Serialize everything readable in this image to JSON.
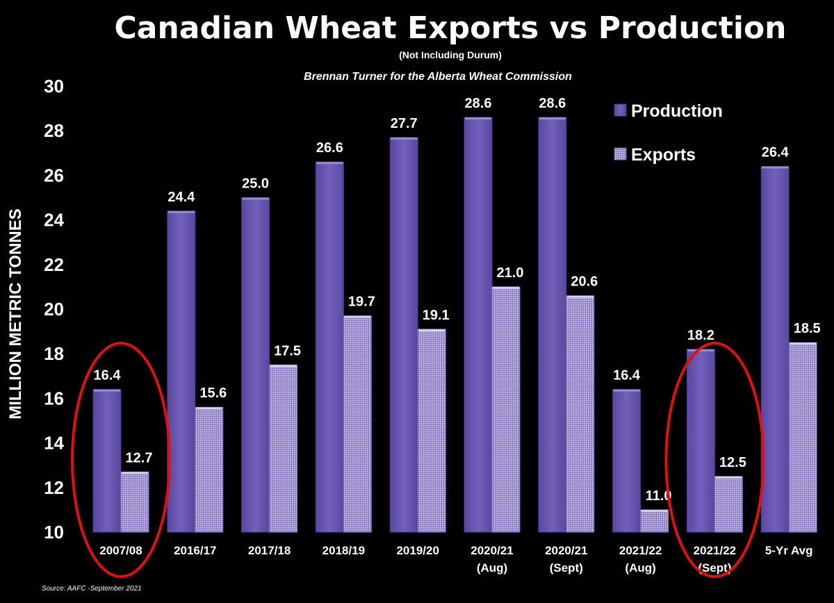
{
  "chart_data": {
    "type": "bar",
    "title": "Canadian Wheat Exports vs Production",
    "subtitle": "(Not Including Durum)",
    "author": "Brennan Turner for the Alberta Wheat Commission",
    "source": "Source: AAFC -September 2021",
    "ylabel": "MILLION METRIC TONNES",
    "ylim": [
      10,
      30
    ],
    "yticks": [
      10,
      12,
      14,
      16,
      18,
      20,
      22,
      24,
      26,
      28,
      30
    ],
    "grid": false,
    "legend_position": "top-right",
    "categories": [
      [
        "2007/08"
      ],
      [
        "2016/17"
      ],
      [
        "2017/18"
      ],
      [
        "2018/19"
      ],
      [
        "2019/20"
      ],
      [
        "2020/21",
        "(Aug)"
      ],
      [
        "2020/21",
        "(Sept)"
      ],
      [
        "2021/22",
        "(Aug)"
      ],
      [
        "2021/22",
        "(Sept)"
      ],
      [
        "5-Yr Avg"
      ]
    ],
    "series": [
      {
        "name": "Production",
        "color": "#6a56ad",
        "pattern": "solid",
        "values": [
          16.4,
          24.4,
          25.0,
          26.6,
          27.7,
          28.6,
          28.6,
          16.4,
          18.2,
          26.4
        ],
        "labels": [
          "16.4",
          "24.4",
          "25.0",
          "26.6",
          "27.7",
          "28.6",
          "28.6",
          "16.4",
          "18.2",
          "26.4"
        ]
      },
      {
        "name": "Exports",
        "color": "#b3a6e0",
        "pattern": "dotted",
        "values": [
          12.7,
          15.6,
          17.5,
          19.7,
          19.1,
          21.0,
          20.6,
          11.0,
          12.5,
          18.5
        ],
        "labels": [
          "12.7",
          "15.6",
          "17.5",
          "19.7",
          "19.1",
          "21.0",
          "20.6",
          "11.0",
          "12.5",
          "18.5"
        ]
      }
    ],
    "highlighted_categories": [
      0,
      8
    ],
    "highlight_color": "#e01010"
  }
}
